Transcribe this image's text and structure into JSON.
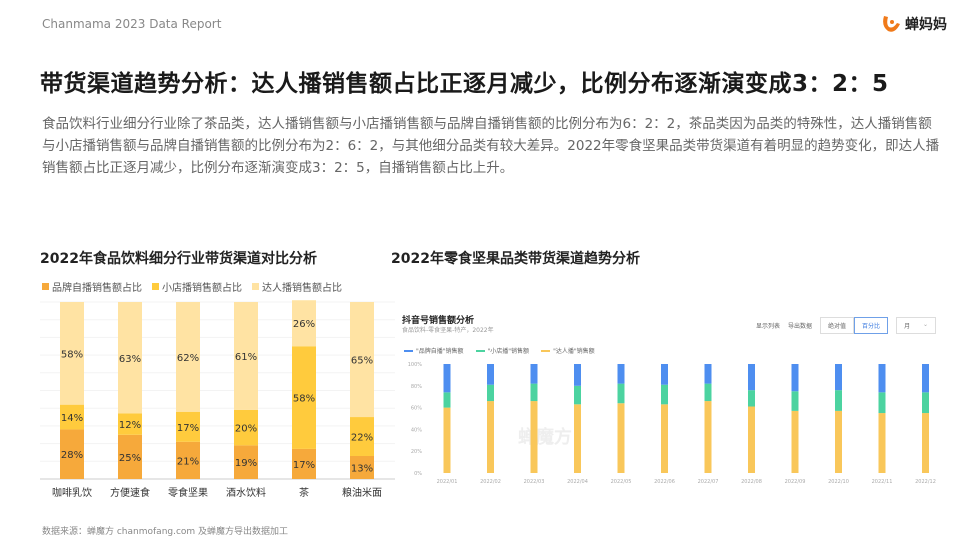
{
  "header": {
    "report": "Chanmama 2023 Data Report",
    "logo_text": "蝉妈妈"
  },
  "title": "带货渠道趋势分析：达人播销售额占比正逐月减少，比例分布逐渐演变成3：2：5",
  "description": "食品饮料行业细分行业除了茶品类，达人播销售额与小店播销售额与品牌自播销售额的比例分布为6：2：2，茶品类因为品类的特殊性，达人播销售额与小店播销售额与品牌自播销售额的比例分布为2：6：2，与其他细分品类有较大差异。2022年零食坚果品类带货渠道有着明显的趋势变化，即达人播销售额占比正逐月减少，比例分布逐渐演变成3：2：5，自播销售额占比上升。",
  "source": "数据来源：蝉魔方 chanmofang.com 及蝉魔方导出数据加工",
  "colors": {
    "brand": "#F6A93B",
    "shop": "#FFCB3D",
    "talent": "#FFE3A3",
    "blue": "#4E8EF0",
    "green": "#4CD3A0",
    "yellow": "#F9C75A"
  },
  "chart_data": [
    {
      "type": "bar",
      "stacked": true,
      "title": "2022年食品饮料细分行业带货渠道对比分析",
      "categories": [
        "咖啡乳饮",
        "方便速食",
        "零食坚果",
        "酒水饮料",
        "茶",
        "粮油米面"
      ],
      "series": [
        {
          "name": "品牌自播销售额占比",
          "values": [
            28,
            25,
            21,
            19,
            17,
            13
          ]
        },
        {
          "name": "小店播销售额占比",
          "values": [
            14,
            12,
            17,
            20,
            58,
            22
          ]
        },
        {
          "name": "达人播销售额占比",
          "values": [
            58,
            63,
            62,
            61,
            26,
            65
          ]
        }
      ],
      "ylim": [
        0,
        100
      ],
      "legend": "top-left",
      "unit": "%"
    },
    {
      "type": "bar",
      "stacked": true,
      "title": "2022年零食坚果品类带货渠道趋势分析",
      "panel_title": "抖音号销售额分析",
      "panel_subtitle": "食品饮料-零食坚果-特产，2022年",
      "tools": [
        "显示列表",
        "导出数据",
        "绝对值",
        "百分比",
        "月"
      ],
      "categories": [
        "2022/01",
        "2022/02",
        "2022/03",
        "2022/04",
        "2022/05",
        "2022/06",
        "2022/07",
        "2022/08",
        "2022/09",
        "2022/10",
        "2022/11",
        "2022/12"
      ],
      "series": [
        {
          "name": "\"达人播\"销售额",
          "values": [
            60,
            66,
            66,
            63,
            64,
            63,
            66,
            61,
            57,
            57,
            55,
            55
          ]
        },
        {
          "name": "\"小店播\"销售额",
          "values": [
            14,
            15,
            16,
            17,
            18,
            18,
            16,
            15,
            18,
            19,
            19,
            19
          ]
        },
        {
          "name": "\"品牌自播\"销售额",
          "values": [
            26,
            19,
            18,
            20,
            18,
            19,
            18,
            24,
            25,
            24,
            26,
            26
          ]
        }
      ],
      "legend_order": [
        "\"品牌自播\"销售额",
        "\"小店播\"销售额",
        "\"达人播\"销售额"
      ],
      "yticks": [
        "0%",
        "20%",
        "40%",
        "60%",
        "80%",
        "100%"
      ],
      "ylim": [
        0,
        100
      ],
      "watermark": "蝉魔方"
    }
  ]
}
